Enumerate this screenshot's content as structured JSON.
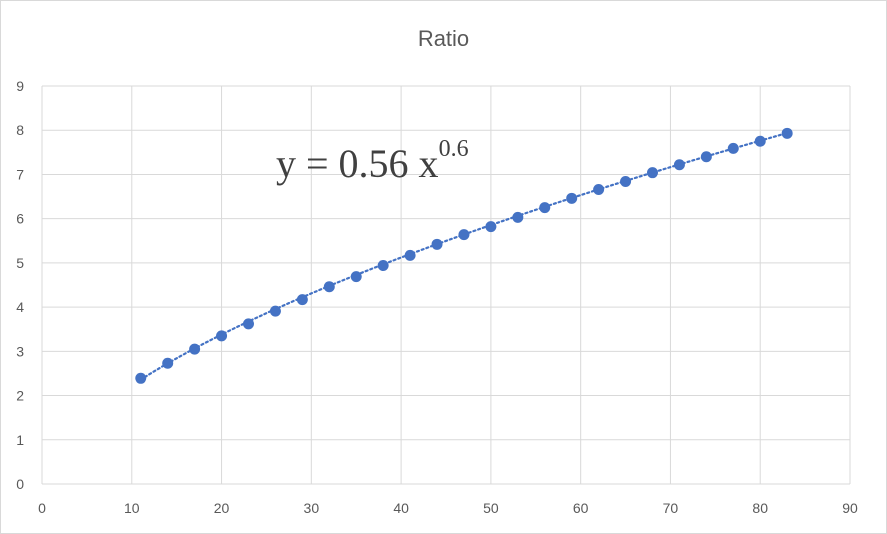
{
  "chart_data": {
    "type": "scatter",
    "title": "Ratio",
    "xlabel": "",
    "ylabel": "",
    "xlim": [
      0,
      90
    ],
    "ylim": [
      0,
      9
    ],
    "xticks": [
      0,
      10,
      20,
      30,
      40,
      50,
      60,
      70,
      80,
      90
    ],
    "yticks": [
      0,
      1,
      2,
      3,
      4,
      5,
      6,
      7,
      8,
      9
    ],
    "grid": true,
    "legend": "none",
    "series": [
      {
        "x": [
          11,
          14,
          17,
          20,
          23,
          26,
          29,
          32,
          35,
          38,
          41,
          44,
          47,
          50,
          53,
          56,
          59,
          62,
          65,
          68,
          71,
          74,
          77,
          80,
          83
        ],
        "y": [
          2.39,
          2.73,
          3.05,
          3.35,
          3.62,
          3.91,
          4.17,
          4.46,
          4.69,
          4.94,
          5.17,
          5.42,
          5.64,
          5.82,
          6.03,
          6.25,
          6.46,
          6.66,
          6.84,
          7.04,
          7.22,
          7.4,
          7.59,
          7.75,
          7.93
        ],
        "color": "#4472C4"
      }
    ],
    "trendline": {
      "type": "power",
      "coefficient": 0.56,
      "exponent": 0.6,
      "style": "dotted",
      "color": "#4472C4"
    },
    "equation": {
      "prefix": "y = 0.56 x",
      "exponent": "0.6"
    }
  }
}
